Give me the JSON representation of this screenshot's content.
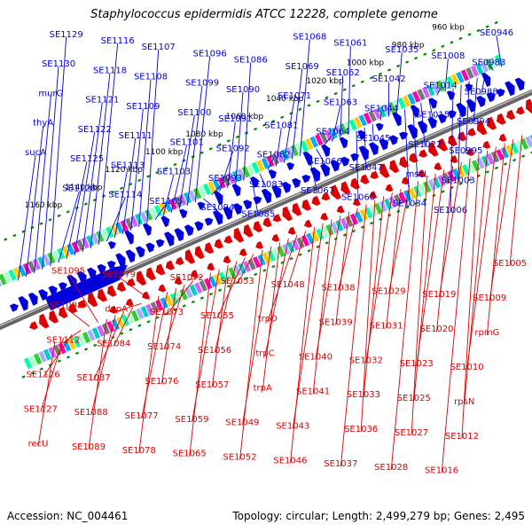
{
  "title": "Staphylococcus epidermidis ATCC 12228, complete genome",
  "footer": {
    "accession": "Accession: NC_004461",
    "summary": "Topology: circular; Length: 2,499,279 bp; Genes: 2,495"
  },
  "colors": {
    "forward": "#0000dd",
    "reverse": "#dd0000",
    "tick": "#008800",
    "ring": "#666666"
  },
  "kbp_ticks": [
    "960 kbp",
    "980 kbp",
    "1000 kbp",
    "1020 kbp",
    "1040 kbp",
    "1060 kbp",
    "1080 kbp",
    "1100 kbp",
    "1120 kbp",
    "1140 kbp",
    "1160 kbp"
  ],
  "forward_genes": [
    "SE0946",
    "SE0983",
    "SE0988",
    "SE0994",
    "SE0995",
    "SE1003",
    "SE1006",
    "SE1008",
    "SE1014",
    "SE1015",
    "SE1022",
    "mscL",
    "SE1034",
    "SE1035",
    "SE1042",
    "SE1044",
    "SE1045",
    "SE1047",
    "SE1060",
    "SE1061",
    "SE1062",
    "SE1063",
    "SE1064",
    "SE1066",
    "SE1067",
    "SE1068",
    "SE1069",
    "SE1071",
    "SE1081",
    "SE1082",
    "SE1083",
    "SE1085",
    "SE1086",
    "SE1090",
    "SE1091",
    "SE1092",
    "SE1093",
    "SE1094",
    "SE1096",
    "SE1099",
    "SE1100",
    "SE1101",
    "SE1103",
    "SE1105",
    "SE1107",
    "SE1108",
    "SE1109",
    "SE1111",
    "SE1113",
    "SE1114",
    "SE1116",
    "SE1118",
    "SE1121",
    "SE1122",
    "SE1125",
    "SE1128",
    "SE1129",
    "SE1130",
    "murG",
    "thyA",
    "sucA"
  ],
  "reverse_genes": [
    "SE1005",
    "SE1009",
    "rpmG",
    "SE1010",
    "rpsN",
    "SE1012",
    "SE1016",
    "SE1019",
    "SE1020",
    "SE1023",
    "SE1025",
    "SE1027",
    "SE1028",
    "SE1029",
    "SE1031",
    "SE1032",
    "SE1033",
    "SE1036",
    "SE1037",
    "SE1038",
    "SE1039",
    "SE1040",
    "SE1041",
    "SE1043",
    "SE1046",
    "SE1048",
    "trpD",
    "trpC",
    "trpA",
    "SE1049",
    "SE1052",
    "SE1053",
    "SE1055",
    "SE1056",
    "SE1057",
    "SE1059",
    "SE1065",
    "SE1072",
    "SE1073",
    "SE1074",
    "SE1076",
    "SE1077",
    "SE1078",
    "SE1079",
    "dapA",
    "SE1084",
    "SE1087",
    "SE1088",
    "SE1089",
    "SE1095",
    "SE1098",
    "SE1112",
    "SE1126",
    "SE1127",
    "recU"
  ]
}
